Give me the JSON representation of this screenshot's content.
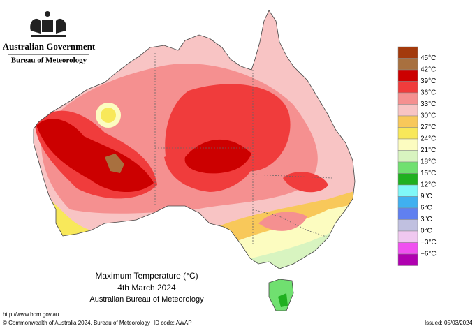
{
  "header": {
    "government": "Australian Government",
    "agency": "Bureau of Meteorology"
  },
  "map": {
    "title": "Maximum Temperature (°C)",
    "date": "4th March 2024",
    "source": "Australian Bureau of Meteorology"
  },
  "legend": {
    "colors": [
      "#a33a0c",
      "#a8703f",
      "#cc0000",
      "#f03c3c",
      "#f59090",
      "#f8c4c4",
      "#f8c85a",
      "#f8e85a",
      "#fcfcc0",
      "#d8f4c0",
      "#70e070",
      "#20b020",
      "#80f8f8",
      "#40b0f0",
      "#6080f0",
      "#c0c0e0",
      "#f0c8f0",
      "#f050f0",
      "#b000b0"
    ],
    "labels": [
      "45°C",
      "42°C",
      "39°C",
      "36°C",
      "33°C",
      "30°C",
      "27°C",
      "24°C",
      "21°C",
      "18°C",
      "15°C",
      "12°C",
      "9°C",
      "6°C",
      "3°C",
      "0°C",
      "−3°C",
      "−6°C"
    ]
  },
  "footer": {
    "url": "http://www.bom.gov.au",
    "copyright": "© Commonwealth of Australia 2024, Bureau of Meteorology",
    "id_code": "ID code: AWAP",
    "issued": "Issued: 05/03/2024"
  }
}
